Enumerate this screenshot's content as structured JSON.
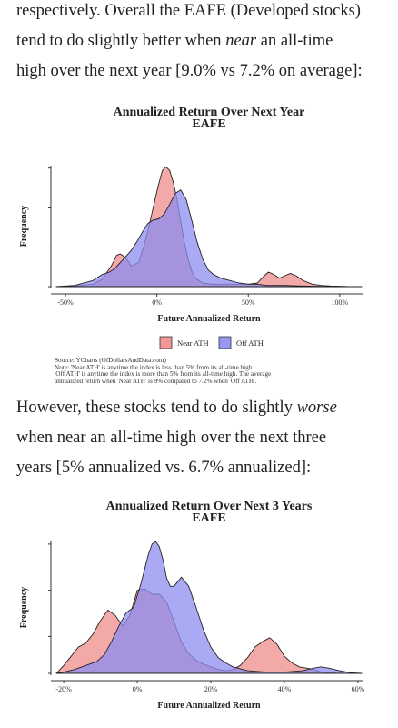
{
  "paragraph1": {
    "line1": "respectively. Overall the EAFE (Developed stocks)",
    "line2_pre": "tend to do slightly better when ",
    "line2_em": "near",
    "line2_post": " an all-time",
    "line3": "high over the next year [9.0% vs 7.2% on average]:"
  },
  "paragraph2": {
    "line1_pre": "However, these stocks tend to do slightly ",
    "line1_em": "worse",
    "line2": "when near an all-time high over the next three",
    "line3": "years [5% annualized vs. 6.7% annualized]:"
  },
  "source": {
    "line1": "Source: YCharts (OfDollarsAndData.com)",
    "line2": "Note: 'Near ATH' is anytime the index is less than 5% from its all-time high.",
    "line3": "'Off ATH' is anytime the index is more than 5% from its all-time high. The average",
    "line4": "annualized return when 'Near ATH' is 9% compared to 7.2% when 'Off ATH'."
  },
  "chart_data": [
    {
      "type": "area",
      "title": "Annualized Return Over Next Year",
      "subtitle": "EAFE",
      "xlabel": "Future Annualized Return",
      "ylabel": "Frequency",
      "x_ticks": [
        -50,
        0,
        50,
        100
      ],
      "x_tick_labels": [
        "-50%",
        "0%",
        "50%",
        "100%"
      ],
      "xlim": [
        -55,
        112
      ],
      "ylim": [
        0,
        1
      ],
      "grid": false,
      "legend": "bottom",
      "series": [
        {
          "name": "Near ATH",
          "color": "#f4a3a3",
          "x": [
            -55,
            -45,
            -35,
            -30,
            -25,
            -22,
            -20,
            -17,
            -14,
            -10,
            -7,
            -4,
            -1,
            1,
            3,
            5,
            7,
            9,
            11,
            13,
            15,
            17,
            19,
            21,
            25,
            30,
            35,
            40,
            45,
            50,
            55,
            58,
            61,
            64,
            67,
            70,
            73,
            76,
            80,
            85,
            90,
            95,
            100,
            105,
            112
          ],
          "y": [
            0,
            0.005,
            0.02,
            0.06,
            0.17,
            0.26,
            0.27,
            0.24,
            0.17,
            0.2,
            0.34,
            0.52,
            0.72,
            0.85,
            0.96,
            0.99,
            0.96,
            0.86,
            0.72,
            0.54,
            0.37,
            0.23,
            0.13,
            0.07,
            0.03,
            0.02,
            0.02,
            0.02,
            0.02,
            0.02,
            0.03,
            0.08,
            0.12,
            0.1,
            0.07,
            0.09,
            0.11,
            0.09,
            0.05,
            0.02,
            0.01,
            0.005,
            0.003,
            0.001,
            0
          ]
        },
        {
          "name": "Off ATH",
          "color": "#a3a3f4",
          "x": [
            -55,
            -45,
            -35,
            -30,
            -26,
            -23,
            -20,
            -17,
            -14,
            -11,
            -8,
            -5,
            -2,
            1,
            4,
            7,
            10,
            13,
            16,
            19,
            22,
            25,
            28,
            31,
            35,
            40,
            45,
            50,
            55,
            60,
            70,
            80,
            90,
            100,
            112
          ],
          "y": [
            0,
            0.01,
            0.05,
            0.1,
            0.12,
            0.15,
            0.2,
            0.25,
            0.3,
            0.37,
            0.45,
            0.52,
            0.55,
            0.56,
            0.6,
            0.68,
            0.77,
            0.8,
            0.72,
            0.55,
            0.37,
            0.23,
            0.14,
            0.1,
            0.07,
            0.05,
            0.03,
            0.02,
            0.02,
            0.01,
            0.01,
            0.005,
            0.002,
            0.001,
            0
          ]
        }
      ]
    },
    {
      "type": "area",
      "title": "Annualized Return Over Next 3 Years",
      "subtitle": "EAFE",
      "xlabel": "Future Annualized Return",
      "ylabel": "Frequency",
      "x_ticks": [
        -20,
        0,
        20,
        40,
        60
      ],
      "x_tick_labels": [
        "-20%",
        "0%",
        "20%",
        "40%",
        "60%"
      ],
      "xlim": [
        -22,
        61
      ],
      "ylim": [
        0,
        1
      ],
      "grid": false,
      "legend": "none",
      "series": [
        {
          "name": "Near ATH",
          "color": "#f4a3a3",
          "x": [
            -22,
            -20,
            -18,
            -16,
            -14,
            -12,
            -10,
            -8,
            -6,
            -4,
            -2,
            0,
            2,
            4,
            6,
            8,
            10,
            12,
            14,
            16,
            18,
            20,
            22,
            24,
            26,
            28,
            30,
            32,
            34,
            36,
            38,
            40,
            42,
            44,
            46,
            48,
            50,
            55,
            61
          ],
          "y": [
            0,
            0.06,
            0.13,
            0.2,
            0.23,
            0.3,
            0.4,
            0.48,
            0.44,
            0.36,
            0.44,
            0.63,
            0.64,
            0.6,
            0.6,
            0.54,
            0.39,
            0.24,
            0.15,
            0.1,
            0.07,
            0.05,
            0.03,
            0.02,
            0.03,
            0.06,
            0.12,
            0.2,
            0.24,
            0.27,
            0.22,
            0.13,
            0.08,
            0.05,
            0.04,
            0.03,
            0.01,
            0,
            0
          ]
        },
        {
          "name": "Off ATH",
          "color": "#a3a3f4",
          "x": [
            -22,
            -20,
            -17,
            -14,
            -11,
            -9,
            -7,
            -5,
            -3,
            -1,
            1,
            3,
            4,
            5,
            6,
            7,
            8,
            9,
            10,
            12,
            14,
            16,
            18,
            20,
            22,
            24,
            26,
            30,
            35,
            40,
            45,
            48,
            50,
            52,
            55,
            58,
            61
          ],
          "y": [
            0,
            0.01,
            0.03,
            0.06,
            0.09,
            0.14,
            0.24,
            0.36,
            0.46,
            0.5,
            0.68,
            0.9,
            0.98,
            1.0,
            0.96,
            0.86,
            0.72,
            0.66,
            0.66,
            0.73,
            0.66,
            0.5,
            0.33,
            0.2,
            0.12,
            0.08,
            0.05,
            0.02,
            0.01,
            0.01,
            0.02,
            0.04,
            0.05,
            0.04,
            0.02,
            0.005,
            0
          ]
        }
      ]
    }
  ]
}
